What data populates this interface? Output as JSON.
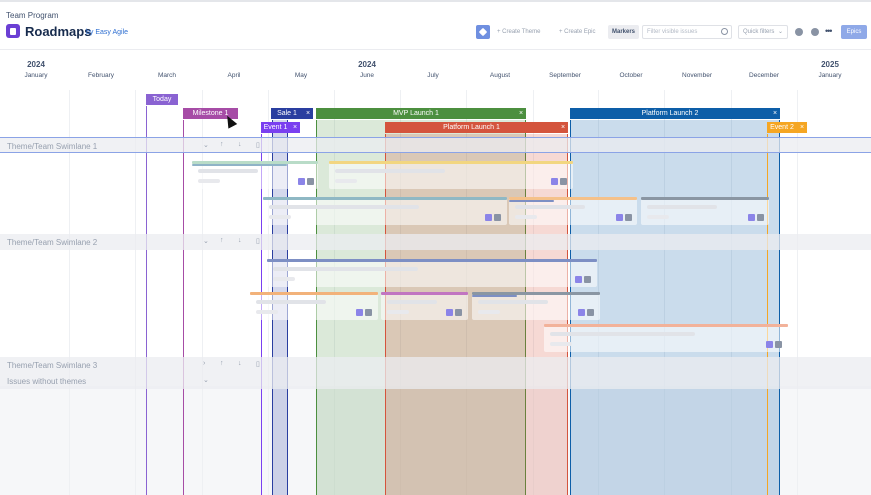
{
  "header": {
    "program": "Team Program",
    "title": "Roadmaps",
    "by": "by Easy Agile",
    "create_theme": "+ Create Theme",
    "create_epic": "+ Create Epic",
    "markers": "Markers",
    "search_placeholder": "Filter visible issues",
    "quick_filters": "Quick filters",
    "epics": "Epics",
    "more": "•••"
  },
  "timeline": {
    "years": [
      "2024",
      "2024",
      "2025"
    ],
    "months": [
      "January",
      "February",
      "March",
      "April",
      "May",
      "June",
      "July",
      "August",
      "September",
      "October",
      "November",
      "December",
      "January"
    ]
  },
  "markers": {
    "today": "Today",
    "milestone1": "Milestone 1",
    "sale1": "Sale 1",
    "mvp": "MVP Launch 1",
    "platform2": "Platform Launch 2",
    "event1": "Event 1",
    "platform1": "Platform Launch 1",
    "event2": "Event 2",
    "close": "×"
  },
  "colors": {
    "today": "#8a63d2",
    "milestone": "#a64ca6",
    "sale": "#2a3ea0",
    "mvp": "#4c8f3f",
    "platform1": "#d4543d",
    "platform2": "#0d5ea8",
    "event1": "#7a3ff0",
    "event2": "#f5a623"
  },
  "swimlanes": {
    "s1": "Theme/Team Swimlane 1",
    "s2": "Theme/Team Swimlane 2",
    "s3": "Theme/Team Swimlane 3",
    "s4": "Issues without themes"
  },
  "icons": [
    "theme-icon",
    "search-icon",
    "info-icon",
    "help-icon",
    "chevron-down-icon",
    "arrow-up-icon",
    "arrow-down-icon",
    "trash-icon",
    "close-icon",
    "cursor-icon"
  ]
}
